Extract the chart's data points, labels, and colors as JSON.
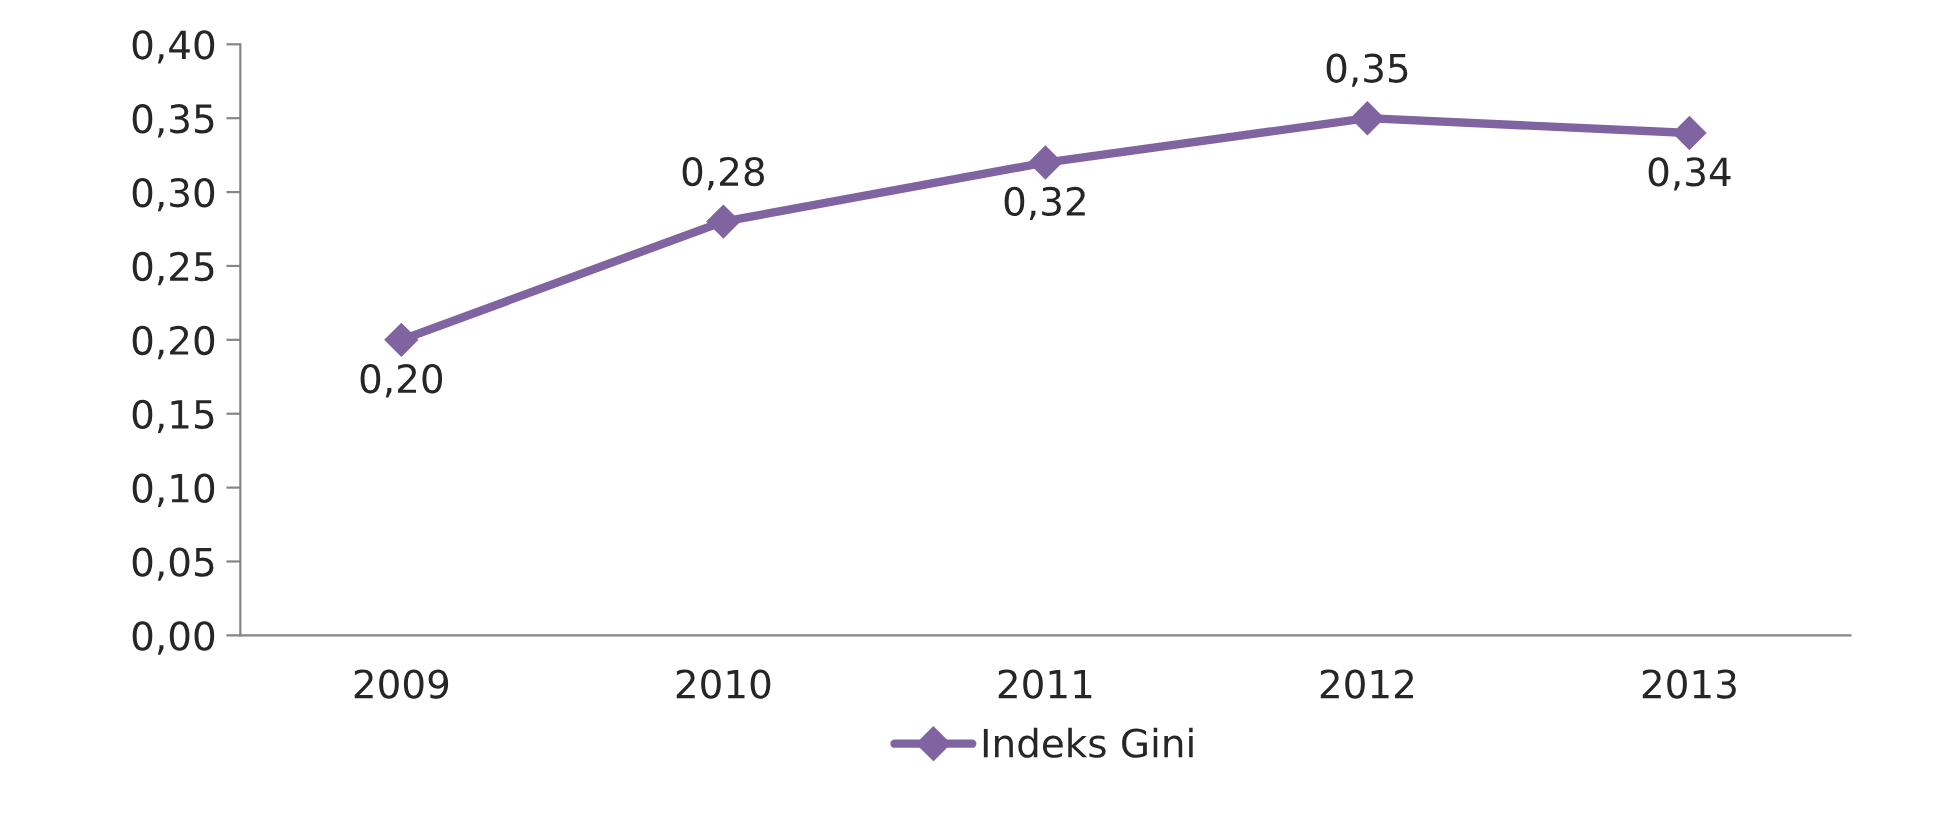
{
  "chart_data": {
    "type": "line",
    "categories": [
      "2009",
      "2010",
      "2011",
      "2012",
      "2013"
    ],
    "series": [
      {
        "name": "Indeks Gini",
        "color": "#8064a2",
        "values": [
          0.2,
          0.28,
          0.32,
          0.35,
          0.34
        ],
        "value_labels": [
          "0,20",
          "0,28",
          "0,32",
          "0,35",
          "0,34"
        ]
      }
    ],
    "ylim": [
      0,
      0.4
    ],
    "yticks": [
      {
        "value": 0,
        "label": "0,00"
      },
      {
        "value": 0.05,
        "label": "0,05"
      },
      {
        "value": 0.1,
        "label": "0,10"
      },
      {
        "value": 0.15,
        "label": "0,15"
      },
      {
        "value": 0.2,
        "label": "0,20"
      },
      {
        "value": 0.25,
        "label": "0,25"
      },
      {
        "value": 0.3,
        "label": "0,30"
      },
      {
        "value": 0.35,
        "label": "0,35"
      },
      {
        "value": 0.4,
        "label": "0,40"
      }
    ],
    "marker": "diamond",
    "line_style": "solid",
    "grid": false,
    "legend": "bottom"
  }
}
